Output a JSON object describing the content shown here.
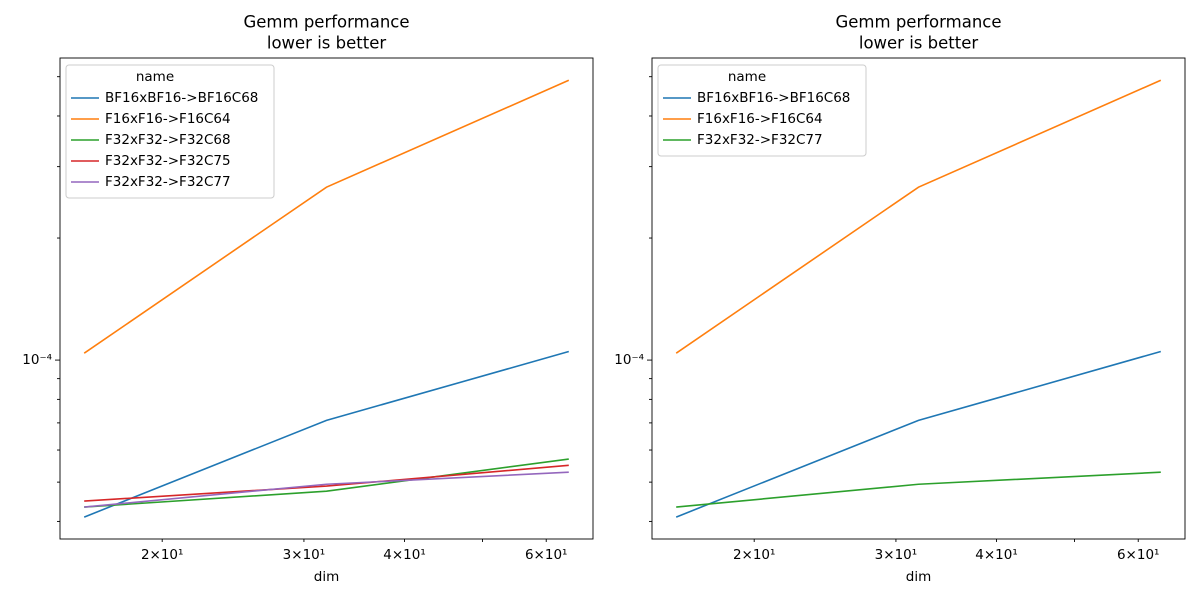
{
  "chart_data": [
    {
      "type": "line",
      "title": "Gemm performance",
      "subtitle": "lower is better",
      "xlabel": "dim",
      "xlog": true,
      "ylog": true,
      "legend_title": "name",
      "legend": "upper left",
      "x": [
        16,
        32,
        64
      ],
      "xlim": [
        14.93,
        68.59
      ],
      "xticks": [
        {
          "value": 20,
          "label": "2×10¹"
        },
        {
          "value": 30,
          "label": "3×10¹"
        },
        {
          "value": 40,
          "label": "4×10¹"
        },
        {
          "value": 60,
          "label": "6×10¹"
        }
      ],
      "xminorticks": [
        50
      ],
      "ylim": [
        3.62e-05,
        0.000556
      ],
      "yticks": [
        {
          "value": 0.0001,
          "label": "10⁻⁴"
        }
      ],
      "yminorticks": [
        4e-05,
        5e-05,
        6e-05,
        7e-05,
        8e-05,
        9e-05,
        0.0002,
        0.0003,
        0.0004,
        0.0005
      ],
      "series": [
        {
          "name": "BF16xBF16->BF16C68",
          "color": "#1f77b4",
          "values": [
            4.1e-05,
            7.1e-05,
            0.000105
          ]
        },
        {
          "name": "F16xF16->F16C64",
          "color": "#ff7f0e",
          "values": [
            0.000104,
            0.000267,
            0.00049
          ]
        },
        {
          "name": "F32xF32->F32C68",
          "color": "#2ca02c",
          "values": [
            4.34e-05,
            4.75e-05,
            5.7e-05
          ]
        },
        {
          "name": "F32xF32->F32C75",
          "color": "#d62728",
          "values": [
            4.49e-05,
            4.89e-05,
            5.5e-05
          ]
        },
        {
          "name": "F32xF32->F32C77",
          "color": "#9467bd",
          "values": [
            4.34e-05,
            4.94e-05,
            5.29e-05
          ]
        }
      ]
    },
    {
      "type": "line",
      "title": "Gemm performance",
      "subtitle": "lower is better",
      "xlabel": "dim",
      "xlog": true,
      "ylog": true,
      "legend_title": "name",
      "legend": "upper left",
      "x": [
        16,
        32,
        64
      ],
      "xlim": [
        14.93,
        68.59
      ],
      "xticks": [
        {
          "value": 20,
          "label": "2×10¹"
        },
        {
          "value": 30,
          "label": "3×10¹"
        },
        {
          "value": 40,
          "label": "4×10¹"
        },
        {
          "value": 60,
          "label": "6×10¹"
        }
      ],
      "xminorticks": [
        50
      ],
      "ylim": [
        3.62e-05,
        0.000556
      ],
      "yticks": [
        {
          "value": 0.0001,
          "label": "10⁻⁴"
        }
      ],
      "yminorticks": [
        4e-05,
        5e-05,
        6e-05,
        7e-05,
        8e-05,
        9e-05,
        0.0002,
        0.0003,
        0.0004,
        0.0005
      ],
      "series": [
        {
          "name": "BF16xBF16->BF16C68",
          "color": "#1f77b4",
          "values": [
            4.1e-05,
            7.1e-05,
            0.000105
          ]
        },
        {
          "name": "F16xF16->F16C64",
          "color": "#ff7f0e",
          "values": [
            0.000104,
            0.000267,
            0.00049
          ]
        },
        {
          "name": "F32xF32->F32C77",
          "color": "#2ca02c",
          "values": [
            4.34e-05,
            4.94e-05,
            5.29e-05
          ]
        }
      ]
    }
  ]
}
